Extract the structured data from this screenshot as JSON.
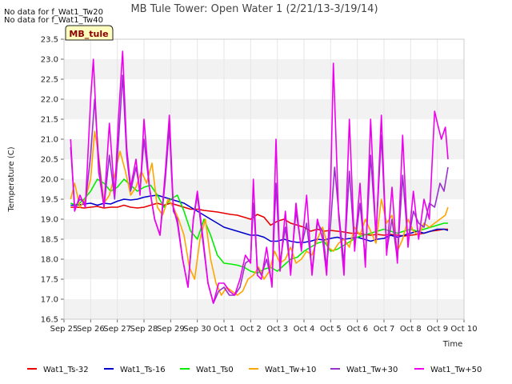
{
  "notes": [
    "No data for f_Wat1_Tw20",
    "No data for f_Wat1_Tw40"
  ],
  "badge": "MB_tule",
  "chart_data": {
    "type": "line",
    "title": "MB Tule Tower: Open Water 1 (2/21/13-3/19/14)",
    "xlabel": "Time",
    "ylabel": "Temperature (C)",
    "ylim": [
      16.5,
      23.5
    ],
    "xlim": [
      0,
      15
    ],
    "yticks": [
      16.5,
      17.0,
      17.5,
      18.0,
      18.5,
      19.0,
      19.5,
      20.0,
      20.5,
      21.0,
      21.5,
      22.0,
      22.5,
      23.0,
      23.5
    ],
    "xtick_labels": [
      "Sep 25",
      "Sep 26",
      "Sep 27",
      "Sep 28",
      "Sep 29",
      "Sep 30",
      "Oct 1",
      "Oct 2",
      "Oct 3",
      "Oct 4",
      "Oct 5",
      "Oct 6",
      "Oct 7",
      "Oct 8",
      "Oct 9",
      "Oct 10"
    ],
    "grid": "horizontal bands",
    "legend": "bottom",
    "series": [
      {
        "name": "Wat1_Ts-32",
        "color": "#e60000",
        "x": [
          0.25,
          0.5,
          0.75,
          1.0,
          1.25,
          1.5,
          1.75,
          2.0,
          2.25,
          2.5,
          2.75,
          3.0,
          3.25,
          3.5,
          3.75,
          4.0,
          4.25,
          4.5,
          4.75,
          5.0,
          5.25,
          5.5,
          5.75,
          6.0,
          6.25,
          6.5,
          6.75,
          7.0,
          7.25,
          7.5,
          7.75,
          8.0,
          8.25,
          8.5,
          8.75,
          9.0,
          9.25,
          9.5,
          9.75,
          10.0,
          10.25,
          10.5,
          10.75,
          11.0,
          11.25,
          11.5,
          11.75,
          12.0,
          12.25,
          12.5,
          12.75,
          13.0,
          13.25,
          13.5,
          13.75,
          14.0,
          14.25,
          14.4
        ],
        "y": [
          19.3,
          19.3,
          19.28,
          19.3,
          19.32,
          19.28,
          19.3,
          19.3,
          19.35,
          19.3,
          19.28,
          19.3,
          19.35,
          19.4,
          19.35,
          19.4,
          19.35,
          19.3,
          19.25,
          19.25,
          19.22,
          19.2,
          19.18,
          19.15,
          19.12,
          19.1,
          19.05,
          19.0,
          19.12,
          19.05,
          18.85,
          18.95,
          19.0,
          18.9,
          18.85,
          18.8,
          18.7,
          18.75,
          18.7,
          18.72,
          18.7,
          18.68,
          18.65,
          18.65,
          18.62,
          18.6,
          18.62,
          18.6,
          18.62,
          18.6,
          18.58,
          18.6,
          18.62,
          18.65,
          18.7,
          18.72,
          18.75,
          18.75
        ]
      },
      {
        "name": "Wat1_Ts-16",
        "color": "#0000cc",
        "x": [
          0.25,
          0.5,
          0.75,
          1.0,
          1.25,
          1.5,
          1.75,
          2.0,
          2.25,
          2.5,
          2.75,
          3.0,
          3.25,
          3.5,
          3.75,
          4.0,
          4.25,
          4.5,
          4.75,
          5.0,
          5.25,
          5.5,
          5.75,
          6.0,
          6.25,
          6.5,
          6.75,
          7.0,
          7.25,
          7.5,
          7.75,
          8.0,
          8.25,
          8.5,
          8.75,
          9.0,
          9.25,
          9.5,
          9.75,
          10.0,
          10.25,
          10.5,
          10.75,
          11.0,
          11.25,
          11.5,
          11.75,
          12.0,
          12.25,
          12.5,
          12.75,
          13.0,
          13.25,
          13.5,
          13.75,
          14.0,
          14.25,
          14.4
        ],
        "y": [
          19.35,
          19.35,
          19.38,
          19.4,
          19.35,
          19.4,
          19.38,
          19.45,
          19.5,
          19.48,
          19.5,
          19.55,
          19.58,
          19.6,
          19.55,
          19.5,
          19.45,
          19.4,
          19.3,
          19.2,
          19.1,
          19.0,
          18.9,
          18.8,
          18.75,
          18.7,
          18.65,
          18.6,
          18.6,
          18.55,
          18.45,
          18.45,
          18.5,
          18.45,
          18.42,
          18.42,
          18.45,
          18.5,
          18.48,
          18.52,
          18.55,
          18.5,
          18.52,
          18.55,
          18.5,
          18.45,
          18.5,
          18.52,
          18.6,
          18.55,
          18.6,
          18.65,
          18.7,
          18.65,
          18.7,
          18.75,
          18.75,
          18.72
        ]
      },
      {
        "name": "Wat1_Ts0",
        "color": "#00ee00",
        "x": [
          0.25,
          0.5,
          0.75,
          1.0,
          1.25,
          1.5,
          1.75,
          2.0,
          2.25,
          2.5,
          2.75,
          3.0,
          3.25,
          3.5,
          3.75,
          4.0,
          4.25,
          4.5,
          4.75,
          5.0,
          5.25,
          5.5,
          5.75,
          6.0,
          6.25,
          6.5,
          6.75,
          7.0,
          7.25,
          7.5,
          7.75,
          8.0,
          8.25,
          8.5,
          8.75,
          9.0,
          9.25,
          9.5,
          9.75,
          10.0,
          10.25,
          10.5,
          10.75,
          11.0,
          11.25,
          11.5,
          11.75,
          12.0,
          12.25,
          12.5,
          12.75,
          13.0,
          13.25,
          13.5,
          13.75,
          14.0,
          14.25,
          14.4
        ],
        "y": [
          19.4,
          19.35,
          19.5,
          19.7,
          20.0,
          19.9,
          19.7,
          19.8,
          20.0,
          19.85,
          19.7,
          19.8,
          19.85,
          19.6,
          19.3,
          19.5,
          19.6,
          19.2,
          18.7,
          18.5,
          19.0,
          18.6,
          18.1,
          17.9,
          17.88,
          17.85,
          17.8,
          17.7,
          17.65,
          17.75,
          17.8,
          17.7,
          17.85,
          18.0,
          18.05,
          18.2,
          18.3,
          18.4,
          18.45,
          18.2,
          18.25,
          18.35,
          18.45,
          18.55,
          18.6,
          18.65,
          18.7,
          18.75,
          18.7,
          18.65,
          18.7,
          18.75,
          18.7,
          18.75,
          18.8,
          18.85,
          18.9,
          18.9
        ]
      },
      {
        "name": "Wat1_Tw+10",
        "color": "#ffa500",
        "x": [
          0.25,
          0.4,
          0.6,
          0.8,
          1.0,
          1.15,
          1.3,
          1.5,
          1.7,
          1.9,
          2.1,
          2.3,
          2.5,
          2.7,
          2.9,
          3.1,
          3.3,
          3.5,
          3.7,
          3.9,
          4.1,
          4.3,
          4.5,
          4.7,
          4.9,
          5.1,
          5.3,
          5.5,
          5.7,
          5.9,
          6.1,
          6.3,
          6.5,
          6.7,
          6.9,
          7.1,
          7.3,
          7.5,
          7.7,
          7.9,
          8.1,
          8.3,
          8.5,
          8.7,
          8.9,
          9.1,
          9.3,
          9.5,
          9.7,
          9.9,
          10.1,
          10.3,
          10.5,
          10.7,
          10.9,
          11.1,
          11.3,
          11.5,
          11.7,
          11.9,
          12.1,
          12.3,
          12.5,
          12.7,
          12.9,
          13.1,
          13.3,
          13.5,
          13.7,
          13.9,
          14.1,
          14.3,
          14.4
        ],
        "y": [
          19.5,
          19.9,
          19.3,
          19.5,
          20.0,
          21.2,
          20.6,
          19.4,
          19.6,
          20.1,
          20.7,
          20.2,
          19.6,
          19.8,
          20.2,
          19.9,
          20.4,
          19.3,
          19.1,
          19.5,
          19.3,
          19.0,
          18.6,
          17.8,
          17.5,
          18.5,
          19.0,
          18.0,
          17.4,
          17.1,
          17.3,
          17.2,
          17.1,
          17.2,
          17.5,
          17.6,
          17.8,
          17.5,
          17.7,
          18.2,
          17.9,
          18.0,
          18.3,
          17.9,
          18.0,
          18.2,
          18.1,
          18.5,
          18.8,
          18.3,
          18.2,
          18.4,
          18.5,
          18.3,
          18.8,
          18.6,
          19.0,
          18.7,
          18.4,
          19.5,
          18.9,
          19.1,
          18.2,
          18.5,
          19.0,
          18.7,
          18.6,
          18.9,
          18.8,
          18.9,
          19.0,
          19.1,
          19.3
        ]
      },
      {
        "name": "Wat1_Tw+30",
        "color": "#9932cc",
        "x": [
          0.25,
          0.4,
          0.6,
          0.8,
          1.0,
          1.15,
          1.3,
          1.5,
          1.7,
          1.9,
          2.05,
          2.2,
          2.35,
          2.5,
          2.7,
          2.85,
          3.0,
          3.2,
          3.4,
          3.6,
          3.8,
          3.95,
          4.1,
          4.25,
          4.45,
          4.65,
          4.85,
          5.0,
          5.2,
          5.4,
          5.6,
          5.8,
          6.0,
          6.2,
          6.4,
          6.6,
          6.8,
          7.0,
          7.1,
          7.25,
          7.4,
          7.6,
          7.8,
          7.95,
          8.1,
          8.3,
          8.5,
          8.7,
          8.9,
          9.1,
          9.3,
          9.5,
          9.7,
          9.85,
          10.0,
          10.15,
          10.3,
          10.5,
          10.7,
          10.9,
          11.1,
          11.3,
          11.5,
          11.7,
          11.9,
          12.1,
          12.3,
          12.5,
          12.7,
          12.9,
          13.1,
          13.3,
          13.5,
          13.7,
          13.9,
          14.1,
          14.25,
          14.4
        ],
        "y": [
          20.8,
          19.3,
          19.5,
          19.4,
          20.6,
          22.0,
          20.5,
          19.3,
          20.6,
          19.5,
          21.0,
          22.6,
          20.6,
          19.7,
          20.3,
          19.7,
          21.0,
          19.8,
          19.0,
          18.6,
          20.0,
          21.3,
          19.2,
          19.0,
          18.0,
          17.3,
          19.0,
          19.6,
          18.5,
          17.4,
          16.9,
          17.2,
          17.3,
          17.1,
          17.1,
          17.3,
          17.9,
          18.0,
          19.4,
          17.8,
          17.6,
          18.0,
          17.4,
          19.9,
          17.9,
          18.8,
          17.7,
          19.2,
          18.3,
          18.9,
          17.7,
          18.9,
          18.7,
          17.8,
          18.9,
          20.3,
          19.2,
          17.9,
          20.2,
          18.3,
          19.4,
          18.0,
          20.6,
          18.6,
          21.1,
          18.2,
          19.0,
          18.0,
          20.1,
          18.4,
          19.2,
          18.9,
          18.8,
          19.4,
          19.3,
          19.9,
          19.7,
          20.3
        ]
      },
      {
        "name": "Wat1_Tw+50",
        "color": "#ee00ee",
        "x": [
          0.25,
          0.4,
          0.6,
          0.8,
          1.0,
          1.1,
          1.3,
          1.5,
          1.7,
          1.9,
          2.05,
          2.2,
          2.35,
          2.5,
          2.7,
          2.85,
          3.0,
          3.2,
          3.4,
          3.6,
          3.8,
          3.95,
          4.1,
          4.25,
          4.45,
          4.65,
          4.85,
          5.0,
          5.2,
          5.4,
          5.6,
          5.8,
          6.0,
          6.2,
          6.4,
          6.6,
          6.8,
          7.0,
          7.1,
          7.25,
          7.4,
          7.6,
          7.8,
          7.95,
          8.1,
          8.3,
          8.5,
          8.7,
          8.9,
          9.1,
          9.3,
          9.5,
          9.7,
          9.85,
          10.0,
          10.1,
          10.3,
          10.5,
          10.7,
          10.9,
          11.1,
          11.3,
          11.5,
          11.7,
          11.9,
          12.1,
          12.3,
          12.5,
          12.7,
          12.9,
          13.1,
          13.3,
          13.5,
          13.7,
          13.9,
          14.0,
          14.15,
          14.3,
          14.4
        ],
        "y": [
          21.0,
          19.2,
          19.6,
          19.3,
          22.0,
          23.0,
          20.2,
          19.3,
          21.4,
          19.6,
          21.6,
          23.2,
          20.8,
          19.8,
          20.5,
          19.6,
          21.5,
          19.8,
          19.0,
          18.6,
          20.2,
          21.6,
          19.3,
          18.9,
          18.0,
          17.3,
          19.0,
          19.7,
          18.6,
          17.4,
          16.9,
          17.4,
          17.4,
          17.2,
          17.1,
          17.5,
          18.1,
          17.9,
          20.0,
          17.6,
          17.5,
          18.3,
          17.3,
          21.0,
          17.7,
          19.2,
          17.6,
          19.4,
          18.2,
          19.6,
          17.6,
          19.0,
          18.5,
          17.6,
          19.8,
          22.9,
          19.1,
          17.6,
          21.5,
          18.2,
          19.9,
          17.8,
          21.5,
          18.5,
          21.6,
          18.1,
          19.8,
          17.9,
          21.1,
          18.3,
          19.7,
          18.5,
          19.5,
          19.0,
          21.7,
          21.4,
          21.0,
          21.3,
          20.5
        ]
      }
    ]
  }
}
